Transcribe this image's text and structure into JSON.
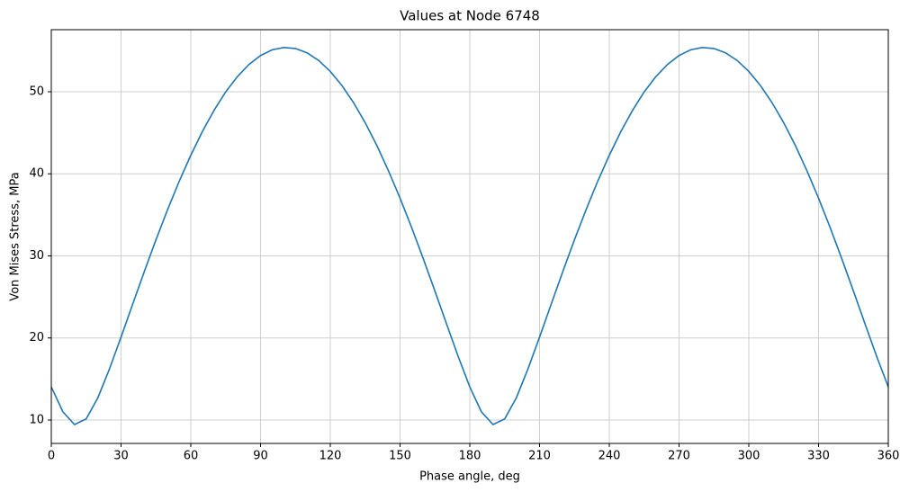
{
  "chart_data": {
    "type": "line",
    "title": "Values at Node 6748",
    "x_label": "Phase angle, deg",
    "y_label": "Von Mises Stress, MPa",
    "x": [
      0,
      5,
      10,
      15,
      20,
      25,
      30,
      35,
      40,
      45,
      50,
      55,
      60,
      65,
      70,
      75,
      80,
      85,
      90,
      95,
      100,
      105,
      110,
      115,
      120,
      125,
      130,
      135,
      140,
      145,
      150,
      155,
      160,
      165,
      170,
      175,
      180,
      185,
      190,
      195,
      200,
      205,
      210,
      215,
      220,
      225,
      230,
      235,
      240,
      245,
      250,
      255,
      260,
      265,
      270,
      275,
      280,
      285,
      290,
      295,
      300,
      305,
      310,
      315,
      320,
      325,
      330,
      335,
      340,
      345,
      350,
      355,
      360
    ],
    "series": [
      {
        "name": "Von Mises Stress",
        "color": "#1f77b4",
        "values": [
          14.03,
          11.0,
          9.45,
          10.14,
          12.7,
          16.21,
          20.1,
          24.11,
          28.09,
          31.95,
          35.62,
          39.08,
          42.26,
          45.16,
          47.73,
          49.97,
          51.83,
          53.32,
          54.41,
          55.11,
          55.39,
          55.27,
          54.74,
          53.81,
          52.47,
          50.76,
          48.67,
          46.23,
          43.46,
          40.38,
          37.03,
          33.44,
          29.65,
          25.72,
          21.71,
          17.75,
          14.03,
          11.0,
          9.45,
          10.14,
          12.7,
          16.21,
          20.1,
          24.11,
          28.09,
          31.95,
          35.62,
          39.08,
          42.26,
          45.16,
          47.73,
          49.97,
          51.83,
          53.32,
          54.41,
          55.11,
          55.39,
          55.27,
          54.74,
          53.81,
          52.47,
          50.76,
          48.67,
          46.23,
          43.46,
          40.38,
          37.03,
          33.44,
          29.65,
          25.72,
          21.71,
          17.75,
          14.03
        ]
      }
    ],
    "xlim": [
      0,
      360
    ],
    "xticks": [
      0,
      30,
      60,
      90,
      120,
      150,
      180,
      210,
      240,
      270,
      300,
      330,
      360
    ],
    "ylim": [
      7.15,
      57.56
    ],
    "yticks": [
      10,
      20,
      30,
      40,
      50
    ],
    "grid": true
  }
}
